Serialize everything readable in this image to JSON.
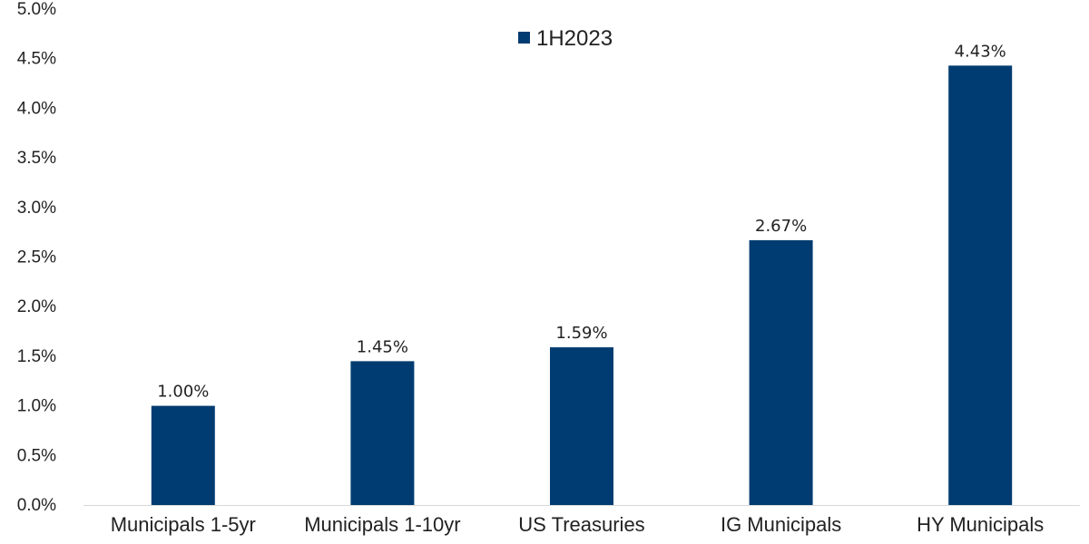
{
  "chart_data": {
    "type": "bar",
    "categories": [
      "Municipals 1-5yr",
      "Municipals 1-10yr",
      "US Treasuries",
      "IG Municipals",
      "HY Municipals"
    ],
    "series": [
      {
        "name": "1H2023",
        "values": [
          1.0,
          1.45,
          1.59,
          2.67,
          4.43
        ],
        "data_labels": [
          "1.00%",
          "1.45%",
          "1.59%",
          "2.67%",
          "4.43%"
        ]
      }
    ],
    "ylim": [
      0,
      5.0
    ],
    "yticks": [
      0.0,
      0.5,
      1.0,
      1.5,
      2.0,
      2.5,
      3.0,
      3.5,
      4.0,
      4.5,
      5.0
    ],
    "ytick_labels": [
      "0.0%",
      "0.5%",
      "1.0%",
      "1.5%",
      "2.0%",
      "2.5%",
      "3.0%",
      "3.5%",
      "4.0%",
      "4.5%",
      "5.0%"
    ],
    "legend": {
      "position": "top-center",
      "entries": [
        "1H2023"
      ]
    },
    "grid": false,
    "colors": {
      "bar": "#003c71",
      "axis": "#d9d9d9",
      "text": "#222222"
    }
  }
}
